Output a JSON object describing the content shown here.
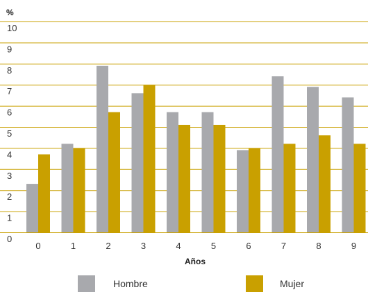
{
  "chart_data": {
    "type": "bar",
    "y_unit_label": "%",
    "xlabel": "Años",
    "categories": [
      "0",
      "1",
      "2",
      "3",
      "4",
      "5",
      "6",
      "7",
      "8",
      "9"
    ],
    "ylim": [
      0,
      10
    ],
    "yticks": [
      "0",
      "1",
      "2",
      "3",
      "4",
      "5",
      "6",
      "7",
      "8",
      "9",
      "10"
    ],
    "grid": true,
    "legend_position": "bottom",
    "series": [
      {
        "name": "Hombre",
        "color": "#a8a9ad",
        "values": [
          2.3,
          4.2,
          7.9,
          6.6,
          5.7,
          5.7,
          3.9,
          7.4,
          6.9,
          6.4
        ]
      },
      {
        "name": "Mujer",
        "color": "#c9a000",
        "values": [
          3.7,
          4.0,
          5.7,
          7.0,
          5.1,
          5.1,
          4.0,
          4.2,
          4.6,
          4.2
        ]
      }
    ],
    "gridline_color": "#c9a000"
  }
}
